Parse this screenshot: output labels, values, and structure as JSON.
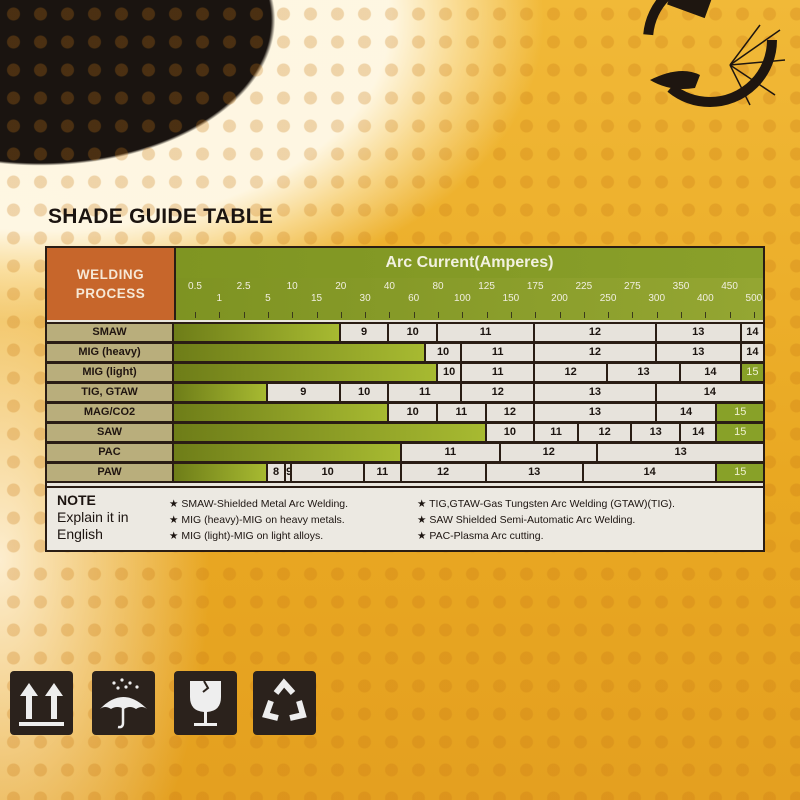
{
  "title": "SHADE GUIDE TABLE",
  "table": {
    "header_left": [
      "WELDING",
      "PROCESS"
    ],
    "header_title": "Arc Current(Amperes)",
    "ticks": [
      "0.5",
      "1",
      "2.5",
      "5",
      "10",
      "15",
      "20",
      "30",
      "40",
      "60",
      "80",
      "100",
      "125",
      "150",
      "175",
      "200",
      "225",
      "250",
      "275",
      "300",
      "350",
      "400",
      "450",
      "500"
    ],
    "rows": [
      {
        "process": "SMAW",
        "segments": [
          {
            "shade": "9",
            "from": 20
          },
          {
            "shade": "10",
            "from": 40
          },
          {
            "shade": "11",
            "from": 80
          },
          {
            "shade": "12",
            "from": 175
          },
          {
            "shade": "13",
            "from": 300
          },
          {
            "shade": "14",
            "from": 475
          }
        ]
      },
      {
        "process": "MIG (heavy)",
        "segments": [
          {
            "shade": "10",
            "from": 70
          },
          {
            "shade": "11",
            "from": 100
          },
          {
            "shade": "12",
            "from": 175
          },
          {
            "shade": "13",
            "from": 300
          },
          {
            "shade": "14",
            "from": 475
          }
        ]
      },
      {
        "process": "MIG (light)",
        "segments": [
          {
            "shade": "10",
            "from": 80
          },
          {
            "shade": "11",
            "from": 100
          },
          {
            "shade": "12",
            "from": 175
          },
          {
            "shade": "13",
            "from": 250
          },
          {
            "shade": "14",
            "from": 350
          },
          {
            "shade": "15",
            "from": 475
          }
        ]
      },
      {
        "process": "TIG, GTAW",
        "segments": [
          {
            "shade": "9",
            "from": 5
          },
          {
            "shade": "10",
            "from": 20
          },
          {
            "shade": "11",
            "from": 40
          },
          {
            "shade": "12",
            "from": 100
          },
          {
            "shade": "13",
            "from": 175
          },
          {
            "shade": "14",
            "from": 300
          }
        ]
      },
      {
        "process": "MAG/CO2",
        "segments": [
          {
            "shade": "10",
            "from": 40
          },
          {
            "shade": "11",
            "from": 80
          },
          {
            "shade": "12",
            "from": 125
          },
          {
            "shade": "13",
            "from": 175
          },
          {
            "shade": "14",
            "from": 300
          },
          {
            "shade": "15",
            "from": 425
          }
        ]
      },
      {
        "process": "SAW",
        "segments": [
          {
            "shade": "10",
            "from": 125
          },
          {
            "shade": "11",
            "from": 175
          },
          {
            "shade": "12",
            "from": 220
          },
          {
            "shade": "13",
            "from": 275
          },
          {
            "shade": "14",
            "from": 350
          },
          {
            "shade": "15",
            "from": 425
          }
        ]
      },
      {
        "process": "PAC",
        "segments": [
          {
            "shade": "11",
            "from": 50
          },
          {
            "shade": "12",
            "from": 140
          },
          {
            "shade": "13",
            "from": 240
          }
        ]
      },
      {
        "process": "PAW",
        "segments": [
          {
            "shade": "8",
            "from": 5
          },
          {
            "shade": "9",
            "from": 8.75
          },
          {
            "shade": "10",
            "from": 10
          },
          {
            "shade": "11",
            "from": 30
          },
          {
            "shade": "12",
            "from": 50
          },
          {
            "shade": "13",
            "from": 125
          },
          {
            "shade": "14",
            "from": 225
          },
          {
            "shade": "15",
            "from": 425
          }
        ]
      }
    ],
    "colors": {
      "bar": "#8aa02a",
      "shade15": "#88a128",
      "header": "#c7662b"
    }
  },
  "note": {
    "heading": "NOTE",
    "sub": [
      "Explain it in",
      "English"
    ],
    "col1": [
      "SMAW-Shielded Metal Arc Welding.",
      "MIG (heavy)-MIG on heavy metals.",
      "MIG (light)-MIG on light alloys."
    ],
    "col2": [
      "TIG,GTAW-Gas Tungsten Arc Welding (GTAW)(TIG).",
      "SAW Shielded Semi-Automatic Arc Welding.",
      "PAC-Plasma Arc cutting."
    ]
  },
  "icons": [
    "this-way-up-icon",
    "keep-dry-icon",
    "fragile-icon",
    "recycle-icon"
  ]
}
